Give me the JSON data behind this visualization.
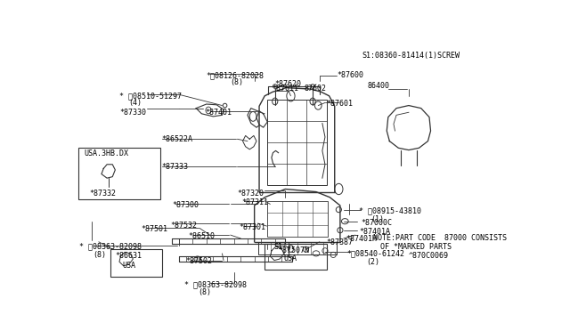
{
  "bg_color": "#ffffff",
  "line_color": "#333333",
  "text_color": "#000000",
  "s1_note": "S1:08360-81414(1)SCREW",
  "note_line1": "NOTE:PART CODE  87000 CONSISTS",
  "note_line2": "OF *MARKED PARTS",
  "diagram_code": "^870C0069"
}
